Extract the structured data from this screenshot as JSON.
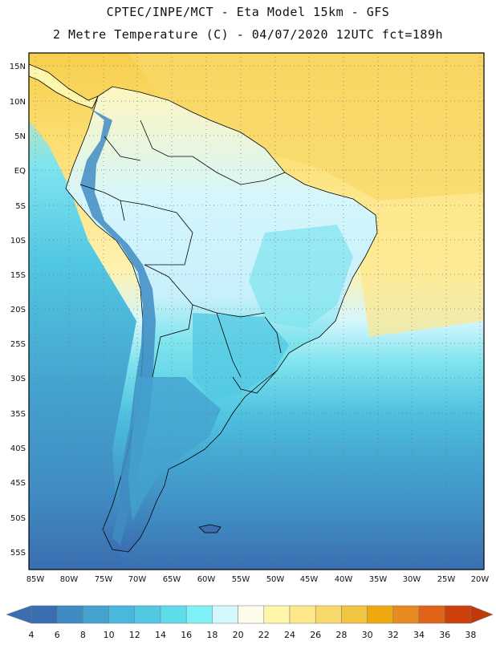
{
  "header": {
    "title_line1": "CPTEC/INPE/MCT -  Eta Model 15km - GFS",
    "title_line2": "2 Metre Temperature (C) - 04/07/2020 12UTC fct=189h"
  },
  "map": {
    "lat_labels": [
      "15N",
      "10N",
      "5N",
      "EQ",
      "5S",
      "10S",
      "15S",
      "20S",
      "25S",
      "30S",
      "35S",
      "40S",
      "45S",
      "50S",
      "55S"
    ],
    "lon_labels": [
      "85W",
      "80W",
      "75W",
      "70W",
      "65W",
      "60W",
      "55W",
      "50W",
      "45W",
      "40W",
      "35W",
      "30W",
      "25W",
      "20W"
    ],
    "land_color": "#d6f3fb",
    "ocean_warm_color": "#fde58a",
    "ocean_cool_color": "#3fa5d0"
  },
  "colorbar": {
    "ticks": [
      "4",
      "6",
      "8",
      "10",
      "12",
      "14",
      "16",
      "18",
      "20",
      "22",
      "24",
      "26",
      "28",
      "30",
      "32",
      "34",
      "36",
      "38"
    ],
    "colors": [
      "#3a6eb0",
      "#3f8cc4",
      "#44a3cf",
      "#4ab7dc",
      "#52c8e3",
      "#5edcea",
      "#7ef2f7",
      "#d4f6fd",
      "#fdfbea",
      "#fef6aa",
      "#fde78a",
      "#f8d86a",
      "#f1c441",
      "#eea90f",
      "#e88a22",
      "#df6418",
      "#cb4109"
    ],
    "under_color": "#3a6eb0",
    "over_color": "#c03a08"
  }
}
